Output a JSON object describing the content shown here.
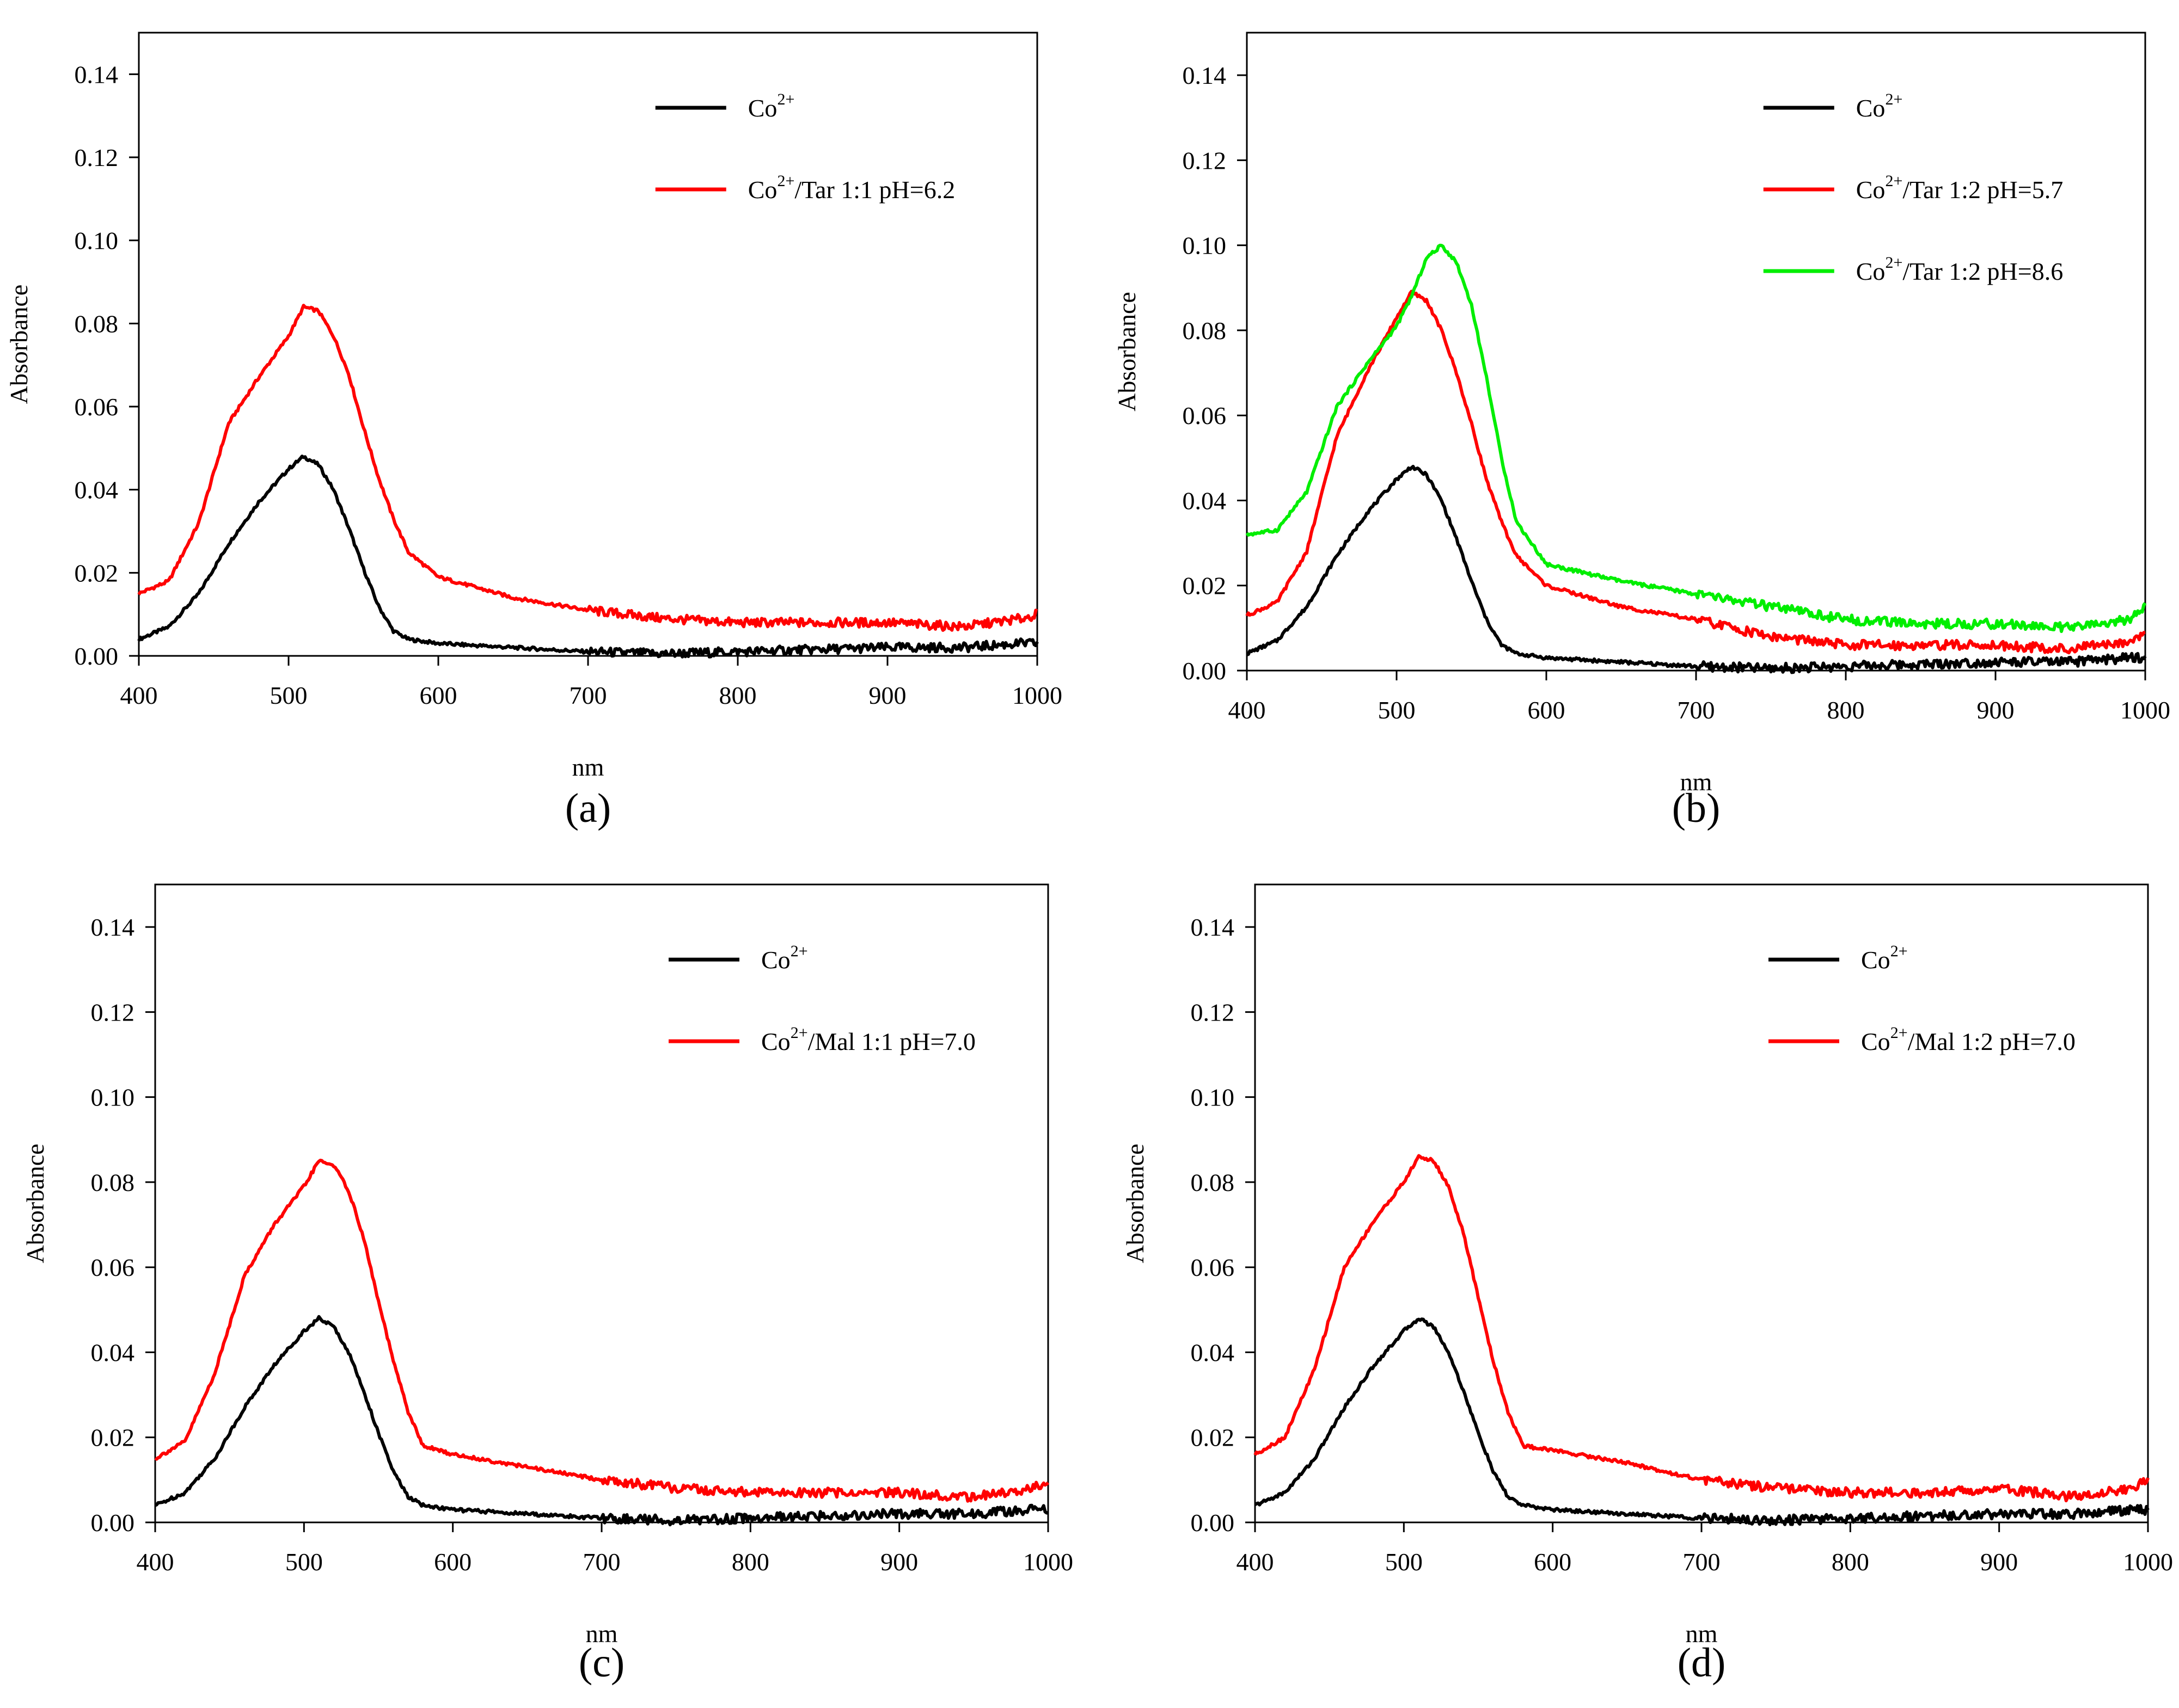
{
  "chart_data": [
    {
      "type": "line",
      "panel_label": "(a)",
      "xlabel": "nm",
      "ylabel": "Absorbance",
      "xlim": [
        400,
        1000
      ],
      "ylim": [
        0,
        0.15
      ],
      "xticks": [
        400,
        500,
        600,
        700,
        800,
        900,
        1000
      ],
      "yticks": [
        0,
        0.02,
        0.04,
        0.06,
        0.08,
        0.1,
        0.12,
        0.14
      ],
      "xtick_labels": [
        "400",
        "500",
        "600",
        "700",
        "800",
        "900",
        "1000"
      ],
      "ytick_labels": [
        "0.00",
        "0.02",
        "0.04",
        "0.06",
        "0.08",
        "0.10",
        "0.12",
        "0.14"
      ],
      "legend_position": "top-right",
      "series": [
        {
          "name": "Co2+",
          "label_base": "Co",
          "label_sup": "2+",
          "label_rest": "",
          "color": "#000000",
          "x": [
            400,
            420,
            440,
            460,
            480,
            500,
            510,
            520,
            530,
            540,
            550,
            560,
            570,
            580,
            600,
            650,
            700,
            750,
            800,
            850,
            900,
            950,
            990,
            1000
          ],
          "y": [
            0.004,
            0.007,
            0.015,
            0.027,
            0.037,
            0.045,
            0.048,
            0.046,
            0.04,
            0.031,
            0.021,
            0.012,
            0.006,
            0.004,
            0.003,
            0.002,
            0.001,
            0.0005,
            0.001,
            0.0015,
            0.002,
            0.002,
            0.003,
            0.003
          ]
        },
        {
          "name": "Co2+/Tar 1:1 pH=6.2",
          "label_base": "Co",
          "label_sup": "2+",
          "label_rest": "/Tar 1:1 pH=6.2",
          "color": "#ff0000",
          "x": [
            400,
            420,
            440,
            460,
            480,
            500,
            510,
            520,
            530,
            540,
            550,
            560,
            570,
            580,
            600,
            650,
            700,
            750,
            800,
            850,
            900,
            950,
            990,
            1000
          ],
          "y": [
            0.015,
            0.018,
            0.032,
            0.056,
            0.067,
            0.077,
            0.084,
            0.083,
            0.077,
            0.068,
            0.055,
            0.043,
            0.033,
            0.025,
            0.019,
            0.014,
            0.011,
            0.009,
            0.008,
            0.008,
            0.008,
            0.007,
            0.009,
            0.01
          ]
        }
      ]
    },
    {
      "type": "line",
      "panel_label": "(b)",
      "xlabel": "nm",
      "ylabel": "Absorbance",
      "xlim": [
        400,
        1000
      ],
      "ylim": [
        0,
        0.15
      ],
      "xticks": [
        400,
        500,
        600,
        700,
        800,
        900,
        1000
      ],
      "yticks": [
        0,
        0.02,
        0.04,
        0.06,
        0.08,
        0.1,
        0.12,
        0.14
      ],
      "xtick_labels": [
        "400",
        "500",
        "600",
        "700",
        "800",
        "900",
        "1000"
      ],
      "ytick_labels": [
        "0.00",
        "0.02",
        "0.04",
        "0.06",
        "0.08",
        "0.10",
        "0.12",
        "0.14"
      ],
      "legend_position": "top-right",
      "series": [
        {
          "name": "Co2+",
          "label_base": "Co",
          "label_sup": "2+",
          "label_rest": "",
          "color": "#000000",
          "x": [
            400,
            420,
            440,
            460,
            480,
            500,
            510,
            520,
            530,
            540,
            550,
            560,
            570,
            580,
            600,
            650,
            700,
            750,
            800,
            850,
            900,
            950,
            990,
            1000
          ],
          "y": [
            0.004,
            0.007,
            0.015,
            0.027,
            0.037,
            0.045,
            0.048,
            0.046,
            0.04,
            0.031,
            0.021,
            0.012,
            0.006,
            0.004,
            0.003,
            0.002,
            0.001,
            0.0005,
            0.001,
            0.0015,
            0.002,
            0.002,
            0.003,
            0.003
          ]
        },
        {
          "name": "Co2+/Tar 1:2 pH=5.7",
          "label_base": "Co",
          "label_sup": "2+",
          "label_rest": "/Tar 1:2 pH=5.7",
          "color": "#ff0000",
          "x": [
            400,
            420,
            440,
            460,
            480,
            500,
            510,
            520,
            530,
            540,
            550,
            560,
            570,
            580,
            600,
            650,
            700,
            750,
            800,
            850,
            900,
            950,
            990,
            1000
          ],
          "y": [
            0.013,
            0.016,
            0.028,
            0.055,
            0.07,
            0.083,
            0.089,
            0.087,
            0.08,
            0.07,
            0.058,
            0.045,
            0.035,
            0.027,
            0.02,
            0.015,
            0.012,
            0.008,
            0.006,
            0.006,
            0.006,
            0.005,
            0.007,
            0.009
          ]
        },
        {
          "name": "Co2+/Tar 1:2 pH=8.6",
          "label_base": "Co",
          "label_sup": "2+",
          "label_rest": "/Tar 1:2 pH=8.6",
          "color": "#00ee00",
          "x": [
            400,
            420,
            440,
            460,
            480,
            500,
            510,
            520,
            530,
            540,
            550,
            560,
            570,
            580,
            600,
            650,
            700,
            750,
            800,
            850,
            900,
            950,
            990,
            1000
          ],
          "y": [
            0.032,
            0.033,
            0.042,
            0.062,
            0.072,
            0.081,
            0.088,
            0.097,
            0.1,
            0.096,
            0.086,
            0.069,
            0.05,
            0.035,
            0.025,
            0.021,
            0.018,
            0.015,
            0.012,
            0.011,
            0.011,
            0.01,
            0.012,
            0.015
          ]
        }
      ]
    },
    {
      "type": "line",
      "panel_label": "(c)",
      "xlabel": "nm",
      "ylabel": "Absorbance",
      "xlim": [
        400,
        1000
      ],
      "ylim": [
        0,
        0.15
      ],
      "xticks": [
        400,
        500,
        600,
        700,
        800,
        900,
        1000
      ],
      "yticks": [
        0,
        0.02,
        0.04,
        0.06,
        0.08,
        0.1,
        0.12,
        0.14
      ],
      "xtick_labels": [
        "400",
        "500",
        "600",
        "700",
        "800",
        "900",
        "1000"
      ],
      "ytick_labels": [
        "0.00",
        "0.02",
        "0.04",
        "0.06",
        "0.08",
        "0.10",
        "0.12",
        "0.14"
      ],
      "legend_position": "top-right",
      "series": [
        {
          "name": "Co2+",
          "label_base": "Co",
          "label_sup": "2+",
          "label_rest": "",
          "color": "#000000",
          "x": [
            400,
            420,
            440,
            460,
            480,
            500,
            510,
            520,
            530,
            540,
            550,
            560,
            570,
            580,
            600,
            650,
            700,
            750,
            800,
            850,
            900,
            950,
            990,
            1000
          ],
          "y": [
            0.004,
            0.007,
            0.015,
            0.027,
            0.037,
            0.045,
            0.048,
            0.046,
            0.04,
            0.031,
            0.021,
            0.012,
            0.006,
            0.004,
            0.003,
            0.002,
            0.001,
            0.0005,
            0.001,
            0.0015,
            0.002,
            0.002,
            0.003,
            0.003
          ]
        },
        {
          "name": "Co2+/Mal 1:1 pH=7.0",
          "label_base": "Co",
          "label_sup": "2+",
          "label_rest": "/Mal 1:1 pH=7.0",
          "color": "#ff0000",
          "x": [
            400,
            420,
            440,
            460,
            480,
            500,
            510,
            520,
            530,
            540,
            550,
            560,
            570,
            580,
            600,
            650,
            700,
            750,
            800,
            850,
            900,
            950,
            990,
            1000
          ],
          "y": [
            0.015,
            0.019,
            0.035,
            0.058,
            0.07,
            0.079,
            0.085,
            0.084,
            0.078,
            0.067,
            0.052,
            0.038,
            0.026,
            0.018,
            0.016,
            0.013,
            0.01,
            0.008,
            0.007,
            0.007,
            0.007,
            0.006,
            0.008,
            0.01
          ]
        }
      ]
    },
    {
      "type": "line",
      "panel_label": "(d)",
      "xlabel": "nm",
      "ylabel": "Absorbance",
      "xlim": [
        400,
        1000
      ],
      "ylim": [
        0,
        0.15
      ],
      "xticks": [
        400,
        500,
        600,
        700,
        800,
        900,
        1000
      ],
      "yticks": [
        0,
        0.02,
        0.04,
        0.06,
        0.08,
        0.1,
        0.12,
        0.14
      ],
      "xtick_labels": [
        "400",
        "500",
        "600",
        "700",
        "800",
        "900",
        "1000"
      ],
      "ytick_labels": [
        "0.00",
        "0.02",
        "0.04",
        "0.06",
        "0.08",
        "0.10",
        "0.12",
        "0.14"
      ],
      "legend_position": "top-right",
      "series": [
        {
          "name": "Co2+",
          "label_base": "Co",
          "label_sup": "2+",
          "label_rest": "",
          "color": "#000000",
          "x": [
            400,
            420,
            440,
            460,
            480,
            500,
            510,
            520,
            530,
            540,
            550,
            560,
            570,
            580,
            600,
            650,
            700,
            750,
            800,
            850,
            900,
            950,
            990,
            1000
          ],
          "y": [
            0.004,
            0.007,
            0.015,
            0.027,
            0.037,
            0.045,
            0.048,
            0.046,
            0.04,
            0.031,
            0.021,
            0.012,
            0.006,
            0.004,
            0.003,
            0.002,
            0.001,
            0.0005,
            0.001,
            0.0015,
            0.002,
            0.002,
            0.003,
            0.003
          ]
        },
        {
          "name": "Co2+/Mal 1:2 pH=7.0",
          "label_base": "Co",
          "label_sup": "2+",
          "label_rest": "/Mal 1:2 pH=7.0",
          "color": "#ff0000",
          "x": [
            400,
            420,
            440,
            460,
            480,
            500,
            510,
            520,
            530,
            540,
            550,
            560,
            570,
            580,
            600,
            650,
            700,
            750,
            800,
            850,
            900,
            950,
            990,
            1000
          ],
          "y": [
            0.016,
            0.02,
            0.036,
            0.06,
            0.071,
            0.08,
            0.086,
            0.085,
            0.079,
            0.068,
            0.053,
            0.038,
            0.026,
            0.018,
            0.017,
            0.014,
            0.01,
            0.008,
            0.007,
            0.007,
            0.008,
            0.006,
            0.008,
            0.01
          ]
        }
      ]
    }
  ]
}
